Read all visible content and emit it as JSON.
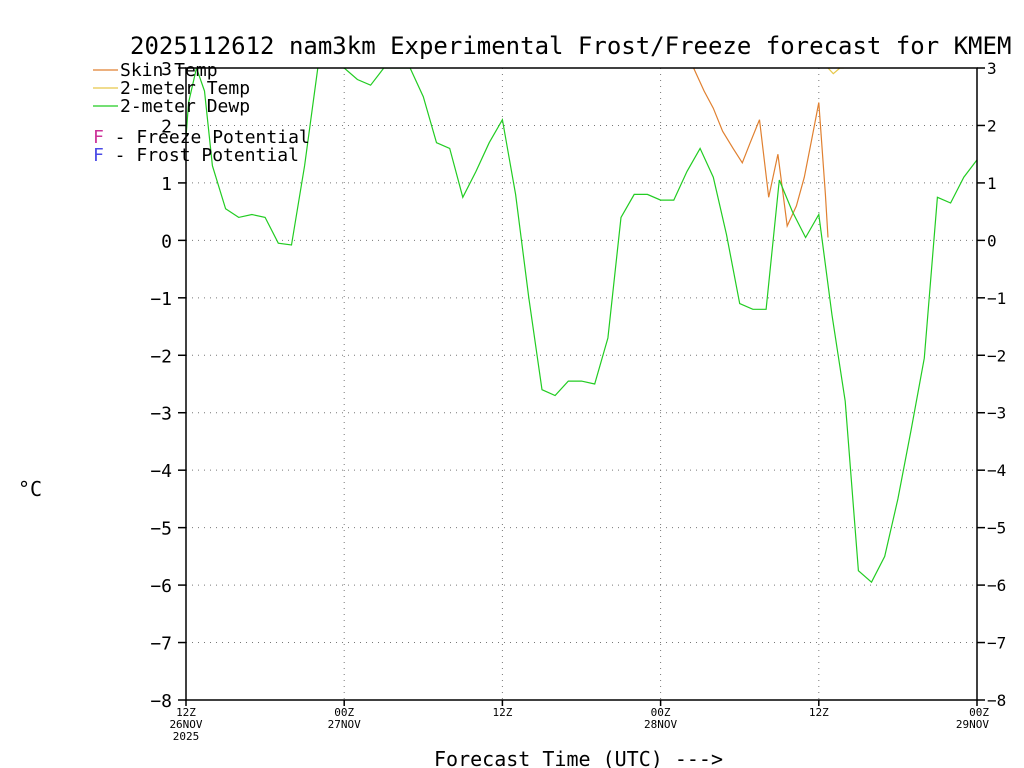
{
  "chart_data": {
    "type": "line",
    "title": "2025112612 nam3km Experimental Frost/Freeze forecast for KMEM",
    "xlabel": "Forecast Time (UTC) --->",
    "ylabel": "°C",
    "ylim": [
      -8,
      3
    ],
    "xlim_hours": [
      0,
      60
    ],
    "yticks": [
      -8,
      -7,
      -6,
      -5,
      -4,
      -3,
      -2,
      -1,
      0,
      1,
      2,
      3
    ],
    "xticks": [
      {
        "hour": 0,
        "lines": [
          "12Z",
          "26NOV",
          "2025"
        ]
      },
      {
        "hour": 12,
        "lines": [
          "00Z",
          "27NOV"
        ]
      },
      {
        "hour": 24,
        "lines": [
          "12Z"
        ]
      },
      {
        "hour": 36,
        "lines": [
          "00Z",
          "28NOV"
        ]
      },
      {
        "hour": 48,
        "lines": [
          "12Z"
        ]
      },
      {
        "hour": 60,
        "lines": [
          "00Z",
          "29NOV"
        ]
      }
    ],
    "grid": true,
    "legend": {
      "placement": "top-left",
      "series_entries": [
        "Skin Temp",
        "2-meter Temp",
        "2-meter Dewp"
      ],
      "potential_entries": [
        {
          "mark": "F",
          "text": " - Freeze Potential",
          "color": "#cc3399"
        },
        {
          "mark": "F",
          "text": " - Frost Potential",
          "color": "#4a4ae6"
        }
      ]
    },
    "series": [
      {
        "name": "Skin Temp",
        "color": "#e08030",
        "hours": [
          38.5,
          39.3,
          40,
          40.7,
          41.5,
          42.2,
          42.8,
          43.5,
          44.2,
          44.9,
          45.6,
          46.3,
          46.9,
          47.5,
          48,
          48.5,
          48.7
        ],
        "values": [
          3.0,
          2.6,
          2.3,
          1.9,
          1.6,
          1.35,
          1.7,
          2.1,
          0.75,
          1.5,
          0.25,
          0.6,
          1.1,
          1.8,
          2.4,
          0.8,
          0.05
        ]
      },
      {
        "name": "2-meter Temp",
        "color": "#e6c84a",
        "hours": [
          48.7,
          49.1,
          49.6,
          49.9
        ],
        "values": [
          3.0,
          2.9,
          3.0,
          3.0
        ]
      },
      {
        "name": "2-meter Dewp",
        "color": "#22cc22",
        "hours": [
          0,
          0.2,
          0.8,
          1.4,
          2,
          3,
          4,
          5,
          6,
          7,
          8,
          9,
          10,
          11,
          12,
          13,
          14,
          15,
          16,
          17,
          18,
          19,
          20,
          21,
          22,
          23,
          24,
          25,
          26,
          27,
          28,
          29,
          30,
          31,
          32,
          33,
          34,
          35,
          36,
          37,
          38,
          39,
          40,
          41,
          42,
          43,
          44,
          45,
          46,
          47,
          48,
          49,
          50,
          51,
          52,
          53,
          54,
          55,
          56,
          57,
          58,
          59,
          60
        ],
        "values": [
          1.8,
          2.4,
          3.0,
          2.6,
          1.3,
          0.55,
          0.4,
          0.45,
          0.4,
          -0.05,
          -0.08,
          1.3,
          3.0,
          3.1,
          3.0,
          2.8,
          2.7,
          3.0,
          3.0,
          3.0,
          2.5,
          1.7,
          1.6,
          0.75,
          1.2,
          1.7,
          2.1,
          0.8,
          -1.0,
          -2.6,
          -2.7,
          -2.45,
          -2.45,
          -2.5,
          -1.7,
          0.4,
          0.8,
          0.8,
          0.7,
          0.7,
          1.2,
          1.6,
          1.1,
          0.1,
          -1.1,
          -1.2,
          -1.2,
          1.05,
          0.5,
          0.05,
          0.45,
          -1.3,
          -2.8,
          -5.75,
          -5.95,
          -5.5,
          -4.5,
          -3.3,
          -2.05,
          0.75,
          0.65,
          1.1,
          1.4
        ]
      }
    ]
  }
}
